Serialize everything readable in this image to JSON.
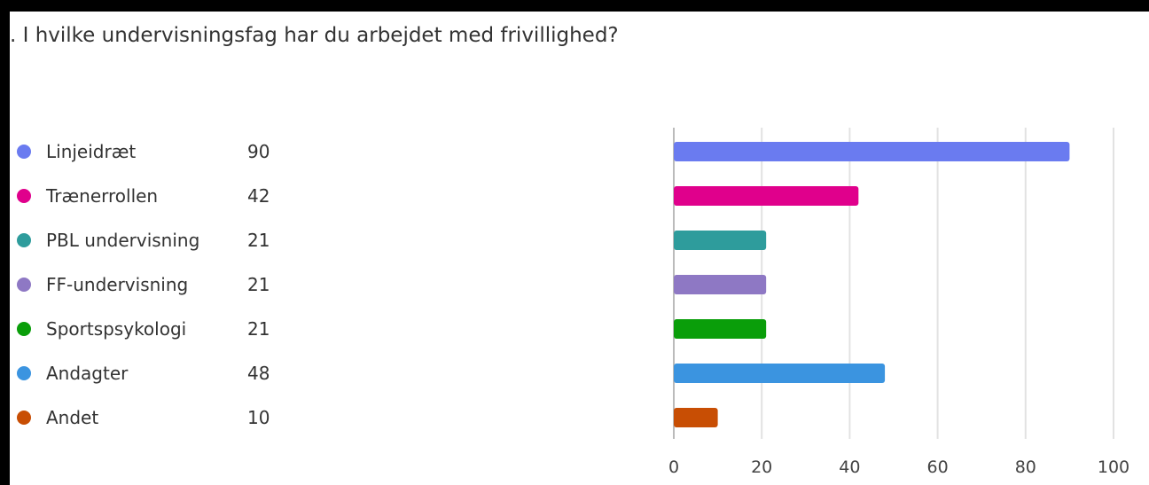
{
  "question": ". I hvilke undervisningsfag har du arbejdet med frivillighed?",
  "chart_data": {
    "type": "bar",
    "orientation": "horizontal",
    "title": ". I hvilke undervisningsfag har du arbejdet med frivillighed?",
    "categories": [
      "Linjeidræt",
      "Trænerrollen",
      "PBL undervisning",
      "FF-undervisning",
      "Sportspsykologi",
      "Andagter",
      "Andet"
    ],
    "values": [
      90,
      42,
      21,
      21,
      21,
      48,
      10
    ],
    "colors": [
      "#6a7bf0",
      "#e0008c",
      "#2e9c9c",
      "#8e78c4",
      "#0a9e0a",
      "#3b94e0",
      "#c84e04"
    ],
    "xlim": [
      0,
      100
    ],
    "xticks": [
      0,
      20,
      40,
      60,
      80,
      100
    ],
    "xtick_labels": [
      "0",
      "20",
      "40",
      "60",
      "80",
      "100"
    ],
    "grid": true,
    "legend": "left"
  }
}
